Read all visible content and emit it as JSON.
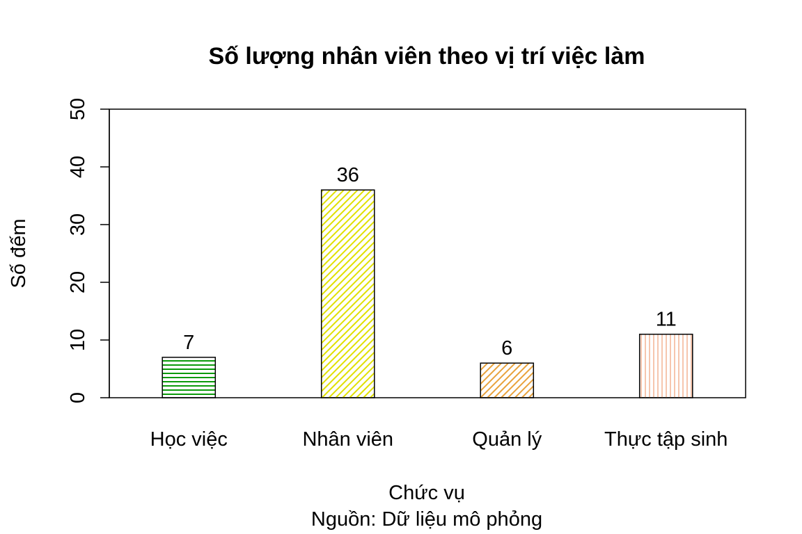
{
  "chart_data": {
    "type": "bar",
    "title": "Số lượng nhân viên theo vị trí việc làm",
    "xlabel": "Chức vụ",
    "ylabel": "Số đếm",
    "caption": "Nguồn: Dữ liệu mô phỏng",
    "categories": [
      "Học việc",
      "Nhân viên",
      "Quản lý",
      "Thực tập sinh"
    ],
    "values": [
      7,
      36,
      6,
      11
    ],
    "data_labels": [
      "7",
      "36",
      "6",
      "11"
    ],
    "ylim": [
      0,
      50
    ],
    "yticks": [
      0,
      10,
      20,
      30,
      40,
      50
    ],
    "ytick_labels": [
      "0",
      "10",
      "20",
      "30",
      "40",
      "50"
    ],
    "grid": false,
    "bar_colors": [
      "#0a9a0a",
      "#e0e000",
      "#e8a23c",
      "#f4b79a"
    ],
    "bar_patterns": [
      "horizontal",
      "diagonal",
      "diagonal",
      "vertical"
    ]
  }
}
